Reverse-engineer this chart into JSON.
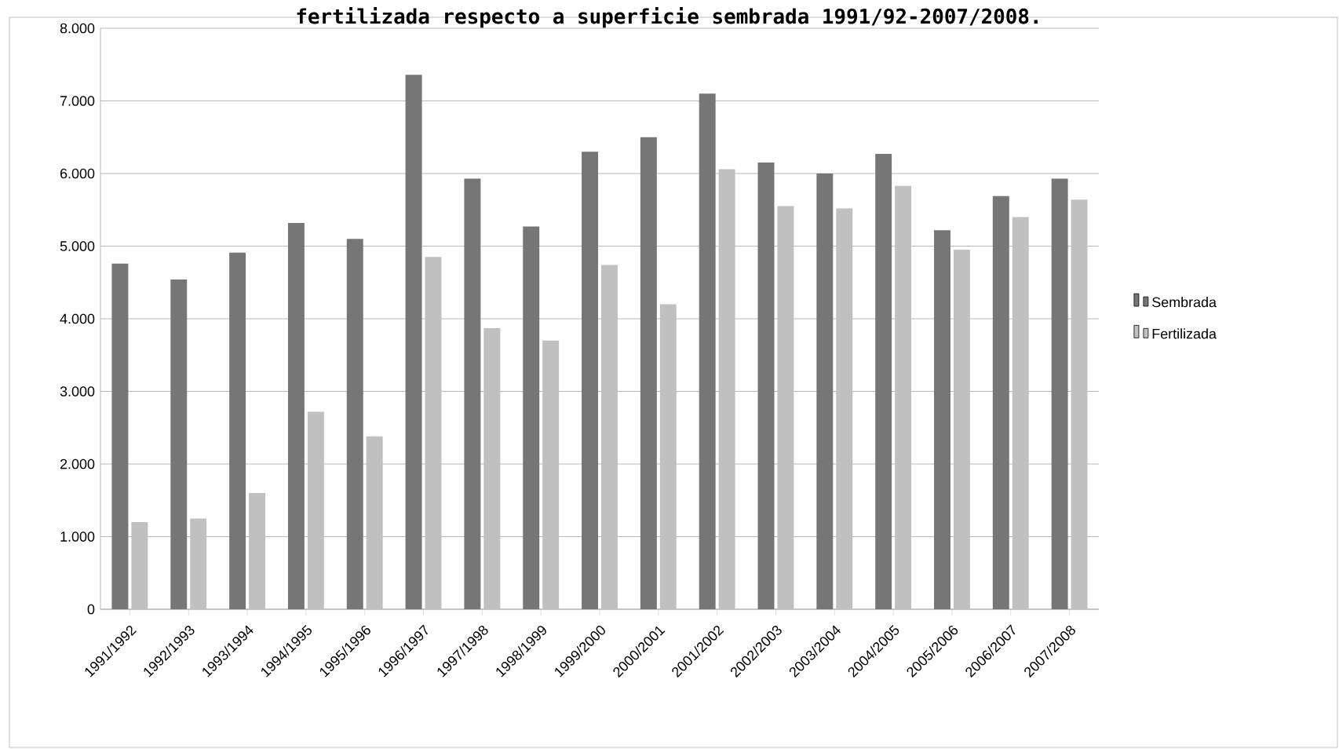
{
  "chart_data": {
    "type": "bar",
    "title": "fertilizada respecto a superficie sembrada 1991/92-2007/2008.",
    "categories": [
      "1991/1992",
      "1992/1993",
      "1993/1994",
      "1994/1995",
      "1995/1996",
      "1996/1997",
      "1997/1998",
      "1998/1999",
      "1999/2000",
      "2000/2001",
      "2001/2002",
      "2002/2003",
      "2003/2004",
      "2004/2005",
      "2005/2006",
      "2006/2007",
      "2007/2008"
    ],
    "series": [
      {
        "name": "Sembrada",
        "color": "#767676",
        "values": [
          4760,
          4540,
          4910,
          5320,
          5100,
          7360,
          5930,
          5270,
          6300,
          6500,
          7100,
          6150,
          6000,
          6270,
          5220,
          5690,
          5930
        ]
      },
      {
        "name": "Fertilizada",
        "color": "#c0c0c0",
        "values": [
          1200,
          1250,
          1600,
          2720,
          2380,
          4850,
          3870,
          3700,
          4740,
          4200,
          6060,
          5550,
          5520,
          5830,
          4950,
          5400,
          5640
        ]
      }
    ],
    "ylim": [
      0,
      8000
    ],
    "yticks": [
      0,
      {
        "value": 1000,
        "label": "1.000"
      },
      {
        "value": 2000,
        "label": "2.000"
      },
      {
        "value": 3000,
        "label": "3.000"
      },
      {
        "value": 4000,
        "label": "4.000"
      },
      {
        "value": 5000,
        "label": "5.000"
      },
      {
        "value": 6000,
        "label": "6.000"
      },
      {
        "value": 7000,
        "label": "7.000"
      },
      {
        "value": 8000,
        "label": "8.000"
      }
    ],
    "grid": "y",
    "legend": "right"
  }
}
